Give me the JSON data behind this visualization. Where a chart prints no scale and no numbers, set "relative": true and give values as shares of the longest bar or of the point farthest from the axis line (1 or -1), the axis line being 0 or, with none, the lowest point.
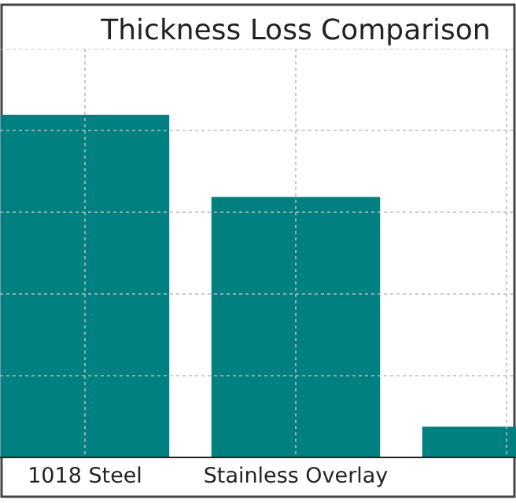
{
  "chart_data": {
    "type": "bar",
    "title": "Thickness Loss Comparison",
    "categories": [
      "1018 Steel",
      "Stainless Overlay",
      null
    ],
    "values": [
      1,
      0.76,
      0.09
    ],
    "color": "#008080",
    "relative": true,
    "grid": true
  }
}
